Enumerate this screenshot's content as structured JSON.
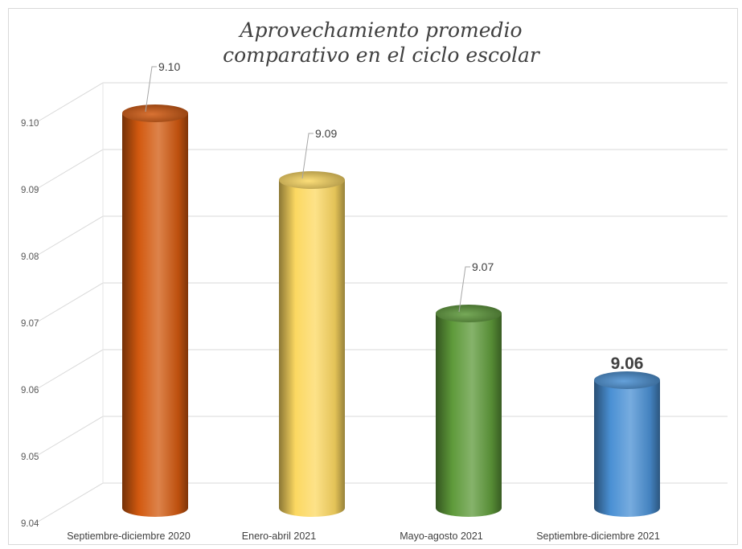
{
  "chart_data": {
    "type": "bar",
    "title_lines": [
      "Aprovechamiento promedio",
      "comparativo en el ciclo escolar"
    ],
    "categories": [
      "Septiembre-diciembre 2020",
      "Enero-abril 2021",
      "Mayo-agosto 2021",
      "Septiembre-diciembre 2021"
    ],
    "values": [
      9.1,
      9.09,
      9.07,
      9.06
    ],
    "data_labels": [
      "9.10",
      "9.09",
      "9.07",
      "9.06"
    ],
    "colors": [
      "#d2590f",
      "#fcd861",
      "#5e9a3a",
      "#4a90d4"
    ],
    "ylim": [
      9.04,
      9.1
    ],
    "yticks": [
      "9.04",
      "9.05",
      "9.06",
      "9.07",
      "9.08",
      "9.09",
      "9.10"
    ],
    "grid": true,
    "legend": "none",
    "xlabel": "",
    "ylabel": ""
  }
}
